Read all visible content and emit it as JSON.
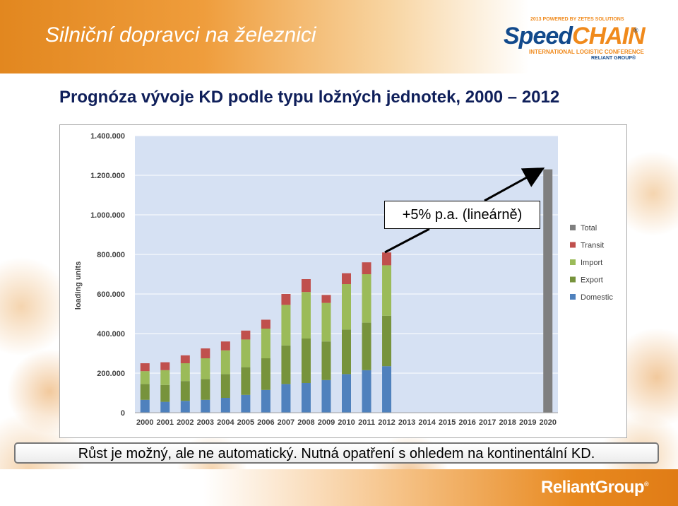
{
  "header": {
    "title": "Silniční dopravci na železnici"
  },
  "logo": {
    "tagline": "2013 POWERED BY ZETES SOLUTIONS",
    "speed": "Speed",
    "chain": "CHAIN",
    "reg": "®",
    "conference": "INTERNATIONAL LOGISTIC CONFERENCE",
    "reliant": "RELIANT GROUP®"
  },
  "subtitle": "Prognóza vývoje KD podle typu ložných jednotek, 2000 – 2012",
  "callout": "+5% p.a. (lineárně)",
  "footer_note": "Růst je možný, ale ne automatický. Nutná opatření s ohledem na kontinentální KD.",
  "bottom_logo": {
    "name": "ReliantGroup",
    "reg": "®"
  },
  "chart_data": {
    "type": "bar",
    "stacked": true,
    "ylabel": "loading units",
    "ylim": [
      0,
      1400000
    ],
    "yticks": [
      0,
      200000,
      400000,
      600000,
      800000,
      1000000,
      1200000,
      1400000
    ],
    "ytick_labels": [
      "0",
      "200.000",
      "400.000",
      "600.000",
      "800.000",
      "1.000.000",
      "1.200.000",
      "1.400.000"
    ],
    "categories": [
      "2000",
      "2001",
      "2002",
      "2003",
      "2004",
      "2005",
      "2006",
      "2007",
      "2008",
      "2009",
      "2010",
      "2011",
      "2012",
      "2013",
      "2014",
      "2015",
      "2016",
      "2017",
      "2018",
      "2019",
      "2020"
    ],
    "series": [
      {
        "name": "Domestic",
        "color": "#4f81bd",
        "values": [
          65000,
          55000,
          60000,
          65000,
          75000,
          90000,
          115000,
          145000,
          150000,
          165000,
          195000,
          215000,
          235000,
          null,
          null,
          null,
          null,
          null,
          null,
          null,
          null
        ]
      },
      {
        "name": "Export",
        "color": "#77933c",
        "values": [
          80000,
          85000,
          100000,
          105000,
          120000,
          140000,
          160000,
          195000,
          225000,
          195000,
          225000,
          240000,
          255000,
          null,
          null,
          null,
          null,
          null,
          null,
          null,
          null
        ]
      },
      {
        "name": "Import",
        "color": "#9bbb59",
        "values": [
          65000,
          75000,
          90000,
          105000,
          120000,
          140000,
          150000,
          205000,
          235000,
          195000,
          230000,
          245000,
          255000,
          null,
          null,
          null,
          null,
          null,
          null,
          null,
          null
        ]
      },
      {
        "name": "Transit",
        "color": "#c0504d",
        "values": [
          40000,
          40000,
          40000,
          50000,
          45000,
          45000,
          45000,
          55000,
          65000,
          40000,
          55000,
          60000,
          65000,
          null,
          null,
          null,
          null,
          null,
          null,
          null,
          null
        ]
      },
      {
        "name": "Total",
        "color": "#7f7f7f",
        "values": [
          null,
          null,
          null,
          null,
          null,
          null,
          null,
          null,
          null,
          null,
          null,
          null,
          null,
          null,
          null,
          null,
          null,
          null,
          null,
          null,
          1230000
        ]
      }
    ],
    "legend_order": [
      "Total",
      "Transit",
      "Import",
      "Export",
      "Domestic"
    ],
    "legend_position": "right",
    "grid": true,
    "plot_background": "#d6e1f3"
  }
}
